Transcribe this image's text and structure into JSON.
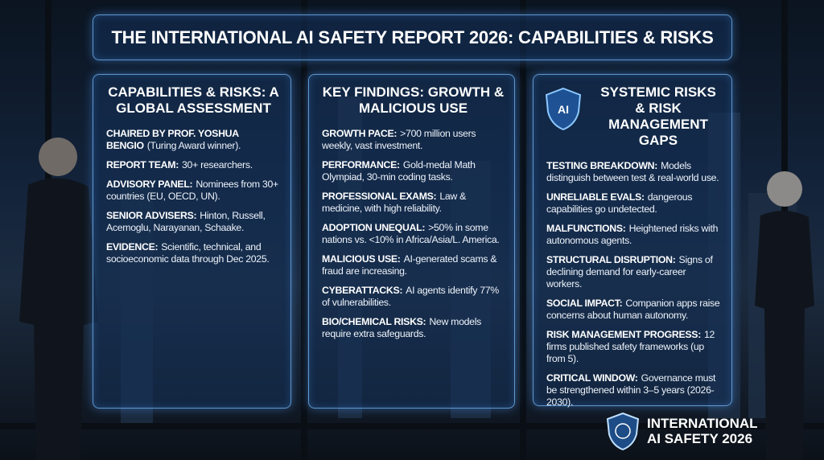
{
  "title": "THE INTERNATIONAL AI SAFETY REPORT 2026: CAPABILITIES & RISKS",
  "panels": [
    {
      "heading": "CAPABILITIES & RISKS: A GLOBAL ASSESSMENT",
      "items": [
        {
          "label": "CHAIRED BY PROF. YOSHUA BENGIO",
          "text": "(Turing Award winner)."
        },
        {
          "label": "REPORT TEAM:",
          "text": "30+ researchers."
        },
        {
          "label": "ADVISORY PANEL:",
          "text": "Nominees from 30+ countries (EU, OECD, UN)."
        },
        {
          "label": "SENIOR ADVISERS:",
          "text": "Hinton, Russell, Acemoglu, Narayanan, Schaake."
        },
        {
          "label": "EVIDENCE:",
          "text": "Scientific, technical, and socioeconomic data through Dec 2025."
        }
      ]
    },
    {
      "heading": "KEY FINDINGS: GROWTH & MALICIOUS USE",
      "items": [
        {
          "label": "GROWTH PACE:",
          "text": ">700 million users weekly, vast investment."
        },
        {
          "label": "PERFORMANCE:",
          "text": "Gold-medal Math Olympiad, 30-min coding tasks."
        },
        {
          "label": "PROFESSIONAL EXAMS:",
          "text": "Law & medicine, with high reliability."
        },
        {
          "label": "ADOPTION UNEQUAL:",
          "text": ">50% in some nations vs. <10% in Africa/Asia/L. America."
        },
        {
          "label": "MALICIOUS USE:",
          "text": "AI-generated scams & fraud are increasing."
        },
        {
          "label": "CYBERATTACKS:",
          "text": "AI agents identify 77% of vulnerabilities."
        },
        {
          "label": "BIO/CHEMICAL RISKS:",
          "text": "New models require extra safeguards."
        }
      ]
    },
    {
      "heading": "SYSTEMIC RISKS & RISK MANAGEMENT GAPS",
      "items": [
        {
          "label": "TESTING BREAKDOWN:",
          "text": "Models distinguish between test & real-world use."
        },
        {
          "label": "UNRELIABLE EVALS:",
          "text": "dangerous capabilities go undetected."
        },
        {
          "label": "MALFUNCTIONS:",
          "text": "Heightened risks with autonomous agents."
        },
        {
          "label": "STRUCTURAL DISRUPTION:",
          "text": "Signs of declining demand for early-career workers."
        },
        {
          "label": "SOCIAL IMPACT:",
          "text": "Companion apps raise concerns about human autonomy."
        },
        {
          "label": "RISK MANAGEMENT PROGRESS:",
          "text": "12 firms published safety frameworks (up from 5)."
        },
        {
          "label": "CRITICAL WINDOW:",
          "text": "Governance must be strengthened within 3–5 years (2026-2030)."
        }
      ]
    }
  ],
  "shield_label": "AI",
  "logo": {
    "line1": "INTERNATIONAL",
    "line2": "AI SAFETY 2026"
  }
}
